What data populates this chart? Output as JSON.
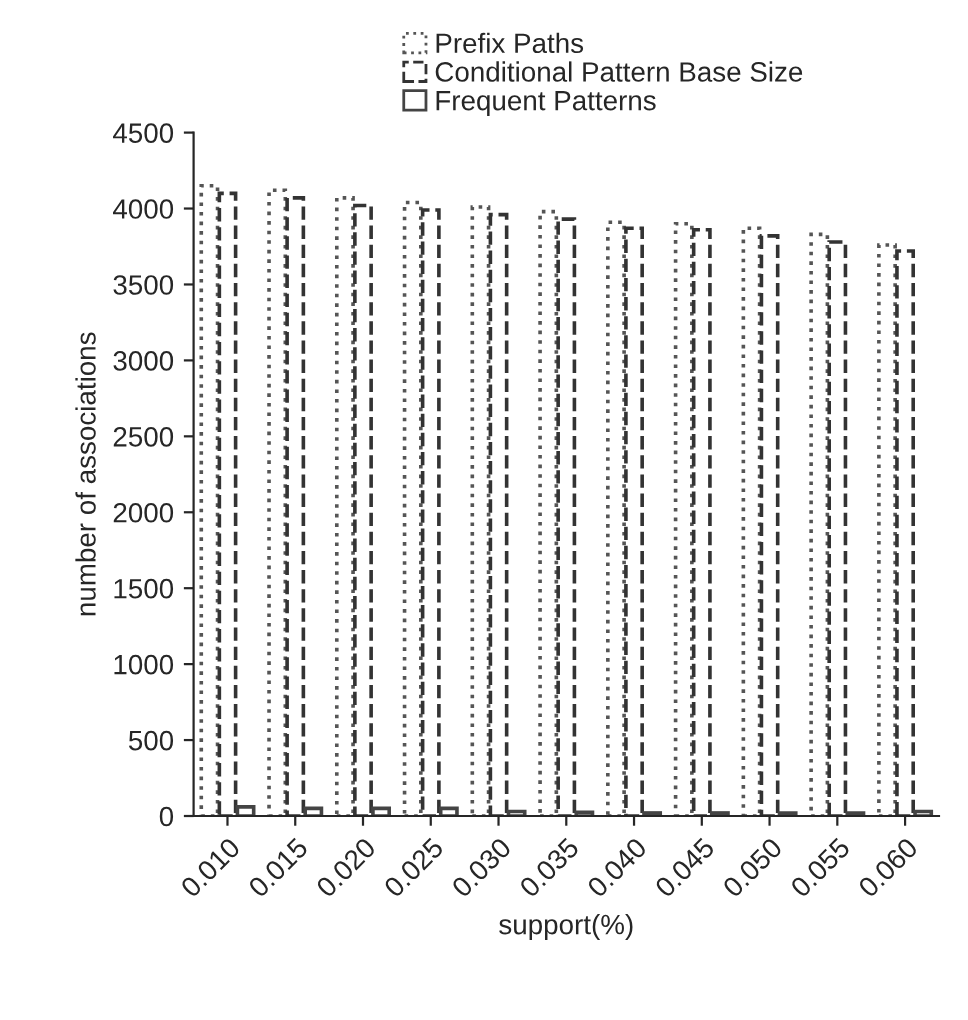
{
  "chart_data": {
    "type": "bar",
    "xlabel": "support(%)",
    "ylabel": "number of associations",
    "categories": [
      "0.010",
      "0.015",
      "0.020",
      "0.025",
      "0.030",
      "0.035",
      "0.040",
      "0.045",
      "0.050",
      "0.055",
      "0.060"
    ],
    "series": [
      {
        "name": "Prefix Paths",
        "color": "#555555",
        "line_style": "dotted",
        "values": [
          4150,
          4120,
          4070,
          4040,
          4010,
          3980,
          3910,
          3900,
          3870,
          3830,
          3760
        ]
      },
      {
        "name": "Conditional Pattern Base Size",
        "color": "#333333",
        "line_style": "dashed",
        "values": [
          4100,
          4070,
          4020,
          3990,
          3960,
          3930,
          3870,
          3860,
          3820,
          3780,
          3720
        ]
      },
      {
        "name": "Frequent Patterns",
        "color": "#444444",
        "line_style": "solid",
        "values": [
          60,
          50,
          50,
          50,
          30,
          25,
          20,
          20,
          20,
          20,
          30
        ]
      }
    ],
    "ylim": [
      0,
      4500
    ],
    "yticks": [
      0,
      500,
      1000,
      1500,
      2000,
      2500,
      3000,
      3500,
      4000,
      4500
    ],
    "grid": false,
    "legend": "top"
  }
}
